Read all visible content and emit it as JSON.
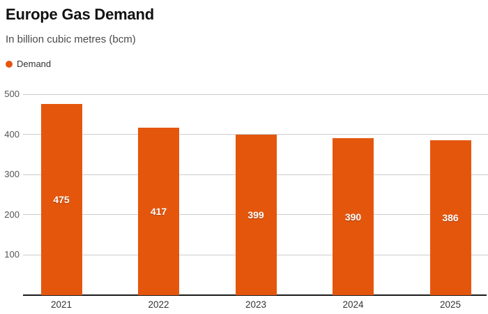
{
  "header": {
    "title": "Europe Gas Demand",
    "subtitle": "In billion cubic metres (bcm)"
  },
  "legend": {
    "label": "Demand",
    "dot_color": "#e5560d"
  },
  "colors": {
    "bar": "#e5560d",
    "value_label": "#ffffff",
    "gridline": "#cccccc",
    "axis_line": "#1a1a1a",
    "tick_text": "#555555",
    "x_label_text": "#333333",
    "title_text": "#111111",
    "subtitle_text": "#4a4a4a",
    "background": "#ffffff"
  },
  "chart_data": {
    "type": "bar",
    "title": "Europe Gas Demand",
    "subtitle": "In billion cubic metres (bcm)",
    "categories": [
      "2021",
      "2022",
      "2023",
      "2024",
      "2025"
    ],
    "series": [
      {
        "name": "Demand",
        "values": [
          475,
          417,
          399,
          390,
          386
        ]
      }
    ],
    "value_labels": [
      475,
      417,
      399,
      390,
      386
    ],
    "xlabel": "",
    "ylabel": "",
    "ylim": [
      0,
      500
    ],
    "yticks": [
      100,
      200,
      300,
      400,
      500
    ],
    "grid": true,
    "legend_position": "top-left"
  }
}
